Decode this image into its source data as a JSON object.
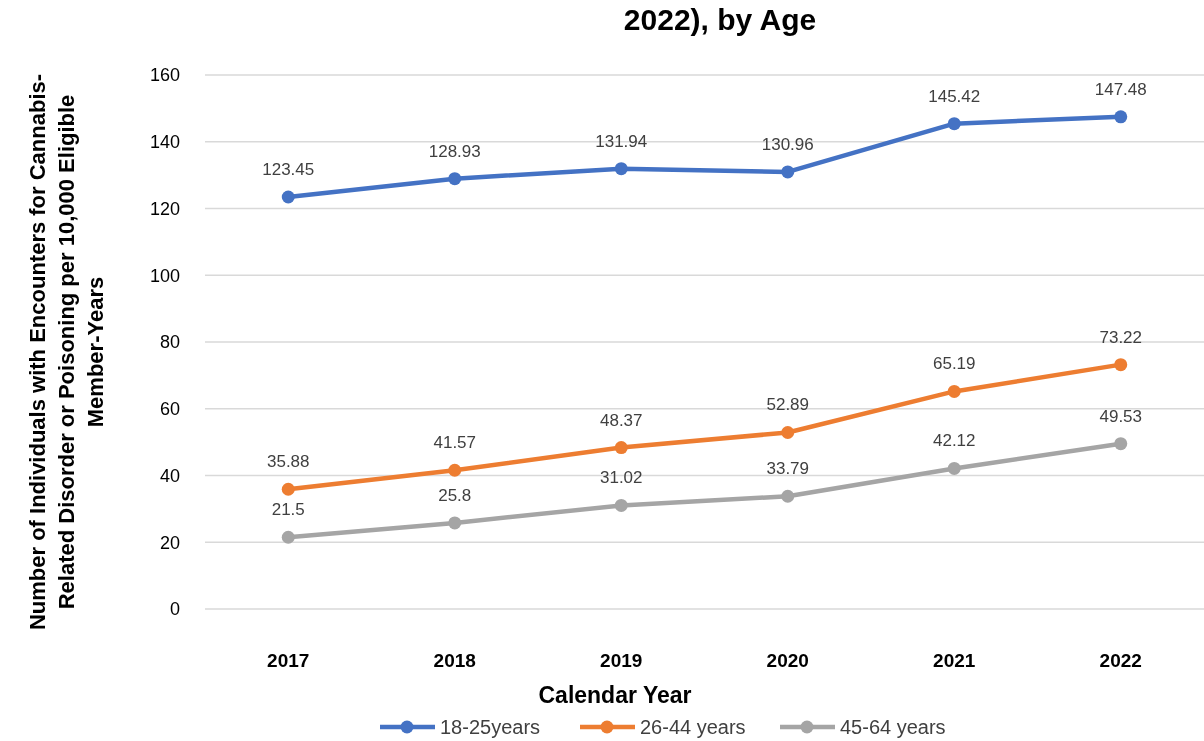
{
  "chart_data": {
    "type": "line",
    "title": "2022), by Age",
    "xlabel": "Calendar Year",
    "ylabel": "Number of Individuals with Encounters for Cannabis-Related Disorder or Poisoning per 10,000 Eligible Member-Years",
    "categories": [
      "2017",
      "2018",
      "2019",
      "2020",
      "2021",
      "2022"
    ],
    "series": [
      {
        "name": "18-25years",
        "color": "#4472c4",
        "values": [
          123.45,
          128.93,
          131.94,
          130.96,
          145.42,
          147.48
        ]
      },
      {
        "name": "26-44 years",
        "color": "#ed7d31",
        "values": [
          35.88,
          41.57,
          48.37,
          52.89,
          65.19,
          73.22
        ]
      },
      {
        "name": "45-64 years",
        "color": "#a5a5a5",
        "values": [
          21.5,
          25.8,
          31.02,
          33.79,
          42.12,
          49.53
        ]
      }
    ],
    "ylim": [
      0,
      160
    ],
    "yticks": [
      0,
      20,
      40,
      60,
      80,
      100,
      120,
      140,
      160
    ],
    "grid": "y",
    "legend": "bottom",
    "marker": "circle",
    "line_style": "solid",
    "data_labels": true
  }
}
